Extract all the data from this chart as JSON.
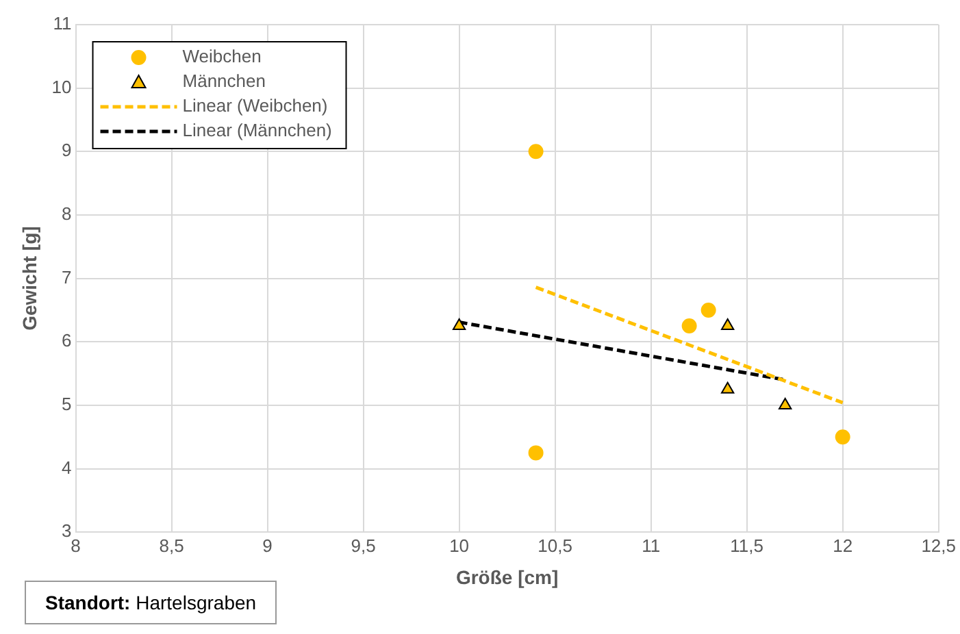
{
  "chart_data": {
    "type": "scatter",
    "xlabel": "Größe [cm]",
    "ylabel": "Gewicht [g]",
    "xlim": [
      8,
      12.5
    ],
    "xticks": [
      8,
      {
        "value": 8.5,
        "label": "8,5"
      },
      9,
      {
        "value": 9.5,
        "label": "9,5"
      },
      10,
      {
        "value": 10.5,
        "label": "10,5"
      },
      11,
      {
        "value": 11.5,
        "label": "11,5"
      },
      12,
      {
        "value": 12.5,
        "label": "12,5"
      }
    ],
    "ylim": [
      3,
      11
    ],
    "yticks": [
      3,
      4,
      5,
      6,
      7,
      8,
      9,
      10,
      11
    ],
    "grid": true,
    "legend": "top left",
    "series": [
      {
        "name": "Weibchen",
        "type": "scatter",
        "marker": "circle",
        "color": "#ffc000",
        "x": [
          10.4,
          10.4,
          11.2,
          11.3,
          12
        ],
        "values": [
          9,
          4.25,
          6.25,
          6.5,
          4.5
        ]
      },
      {
        "name": "Männchen",
        "type": "scatter",
        "marker": "triangle",
        "color": "#ffc000",
        "x": [
          10,
          11.4,
          11.4,
          11.7
        ],
        "values": [
          6.25,
          6.25,
          5.25,
          5
        ]
      },
      {
        "name": "Linear (Weibchen)",
        "type": "line",
        "marker": "none",
        "line_style": "dashed",
        "color": "#ffc000",
        "x": [
          10.4,
          12
        ],
        "values": [
          6.86,
          5.04
        ]
      },
      {
        "name": "Linear (Männchen)",
        "type": "line",
        "marker": "none",
        "line_style": "dashed",
        "color": "#000000",
        "x": [
          10,
          11.7
        ],
        "values": [
          6.31,
          5.4
        ]
      }
    ],
    "annotations": [
      "Standort: Hartelsgraben"
    ]
  }
}
